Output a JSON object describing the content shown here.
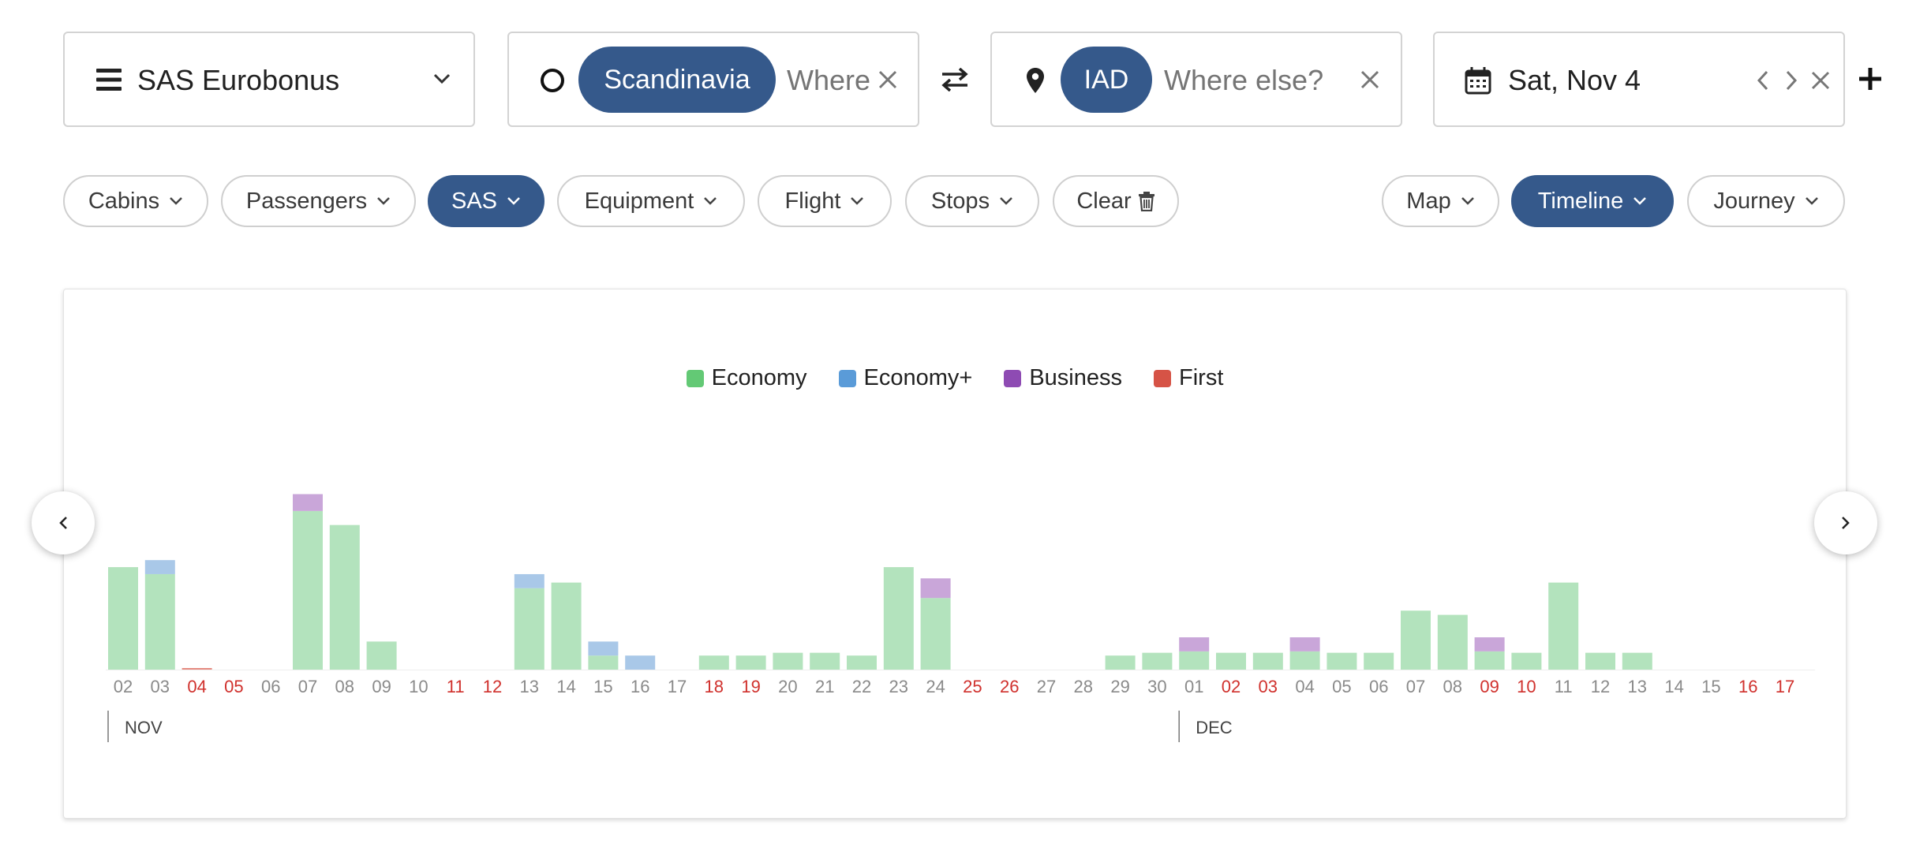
{
  "program": {
    "label": "SAS Eurobonus"
  },
  "origin": {
    "tag": "Scandinavia",
    "placeholder": "Where"
  },
  "destination": {
    "tag": "IAD",
    "placeholder": "Where else?"
  },
  "date": {
    "label": "Sat, Nov 4"
  },
  "filters": {
    "cabins": "Cabins",
    "passengers": "Passengers",
    "sas": "SAS",
    "equipment": "Equipment",
    "flight": "Flight",
    "stops": "Stops",
    "clear": "Clear"
  },
  "views": {
    "map": "Map",
    "timeline": "Timeline",
    "journey": "Journey"
  },
  "colors": {
    "accent": "#35598b",
    "economy": "#b3e3bd",
    "economy_plus": "#a9c8e8",
    "business": "#c9a6d9",
    "first": "#e58a80",
    "weekend_label": "#d0312d",
    "weekday_label": "#8a8a8a"
  },
  "legend": [
    {
      "label": "Economy",
      "color": "#63c975"
    },
    {
      "label": "Economy+",
      "color": "#5a9bd8"
    },
    {
      "label": "Business",
      "color": "#8e4bb3"
    },
    {
      "label": "First",
      "color": "#d65346"
    }
  ],
  "chart_data": {
    "type": "bar",
    "stacked": true,
    "months": [
      {
        "label": "NOV",
        "start_index": 0
      },
      {
        "label": "DEC",
        "start_index": 29
      }
    ],
    "categories": [
      "02",
      "03",
      "04",
      "05",
      "06",
      "07",
      "08",
      "09",
      "10",
      "11",
      "12",
      "13",
      "14",
      "15",
      "16",
      "17",
      "18",
      "19",
      "20",
      "21",
      "22",
      "23",
      "24",
      "25",
      "26",
      "27",
      "28",
      "29",
      "30",
      "01",
      "02",
      "03",
      "04",
      "05",
      "06",
      "07",
      "08",
      "09",
      "10",
      "11",
      "12",
      "13",
      "14",
      "15",
      "16",
      "17"
    ],
    "weekend": [
      false,
      false,
      true,
      true,
      false,
      false,
      false,
      false,
      false,
      true,
      true,
      false,
      false,
      false,
      false,
      false,
      true,
      true,
      false,
      false,
      false,
      false,
      false,
      true,
      true,
      false,
      false,
      false,
      false,
      false,
      true,
      true,
      false,
      false,
      false,
      false,
      false,
      true,
      true,
      false,
      false,
      false,
      false,
      false,
      true,
      true
    ],
    "series": [
      {
        "name": "Economy",
        "values": [
          73,
          68,
          0,
          0,
          0,
          113,
          103,
          20,
          0,
          0,
          0,
          58,
          62,
          10,
          0,
          0,
          10,
          10,
          12,
          12,
          10,
          73,
          51,
          0,
          0,
          0,
          0,
          10,
          12,
          13,
          12,
          12,
          13,
          12,
          12,
          42,
          39,
          13,
          12,
          62,
          12,
          12,
          0,
          0,
          0,
          0
        ]
      },
      {
        "name": "Economy+",
        "values": [
          0,
          10,
          0,
          0,
          0,
          0,
          0,
          0,
          0,
          0,
          0,
          10,
          0,
          10,
          10,
          0,
          0,
          0,
          0,
          0,
          0,
          0,
          0,
          0,
          0,
          0,
          0,
          0,
          0,
          0,
          0,
          0,
          0,
          0,
          0,
          0,
          0,
          0,
          0,
          0,
          0,
          0,
          0,
          0,
          0,
          0
        ]
      },
      {
        "name": "Business",
        "values": [
          0,
          0,
          0,
          0,
          0,
          12,
          0,
          0,
          0,
          0,
          0,
          0,
          0,
          0,
          0,
          0,
          0,
          0,
          0,
          0,
          0,
          0,
          14,
          0,
          0,
          0,
          0,
          0,
          0,
          10,
          0,
          0,
          10,
          0,
          0,
          0,
          0,
          10,
          0,
          0,
          0,
          0,
          0,
          0,
          0,
          0
        ]
      },
      {
        "name": "First",
        "values": [
          0,
          0,
          1,
          0,
          0,
          0,
          0,
          0,
          0,
          0,
          0,
          0,
          0,
          0,
          0,
          0,
          0,
          0,
          0,
          0,
          0,
          0,
          0,
          0,
          0,
          0,
          0,
          0,
          0,
          0,
          0,
          0,
          0,
          0,
          0,
          0,
          0,
          0,
          0,
          0,
          0,
          0,
          0,
          0,
          0,
          0
        ]
      }
    ],
    "ylim": [
      0,
      120
    ]
  }
}
